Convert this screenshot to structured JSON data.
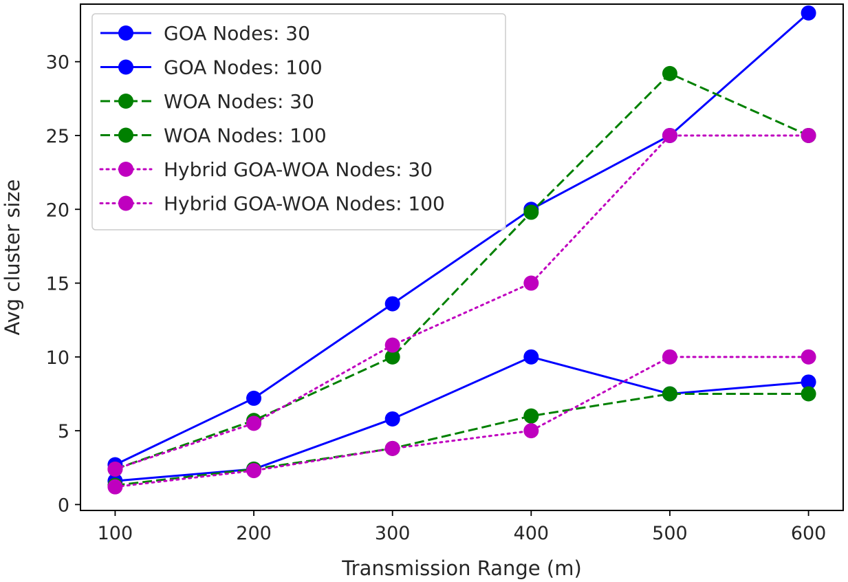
{
  "chart_data": {
    "type": "line",
    "title": "",
    "xlabel": "Transmission Range (m)",
    "ylabel": "Avg cluster size",
    "x": [
      100,
      200,
      300,
      400,
      500,
      600
    ],
    "xlim": [
      75,
      625
    ],
    "ylim": [
      -0.4,
      33.9
    ],
    "xticks": [
      "100",
      "200",
      "300",
      "400",
      "500",
      "600"
    ],
    "yticks": [
      "0",
      "5",
      "10",
      "15",
      "20",
      "25",
      "30"
    ],
    "grid": false,
    "legend_position": "top-left",
    "series": [
      {
        "name": "GOA Nodes: 30",
        "values": [
          1.6,
          2.4,
          5.8,
          10.0,
          7.5,
          8.3
        ],
        "color": "#0000ff",
        "linestyle": "solid"
      },
      {
        "name": "GOA Nodes: 100",
        "values": [
          2.7,
          7.2,
          13.6,
          20.0,
          25.0,
          33.3
        ],
        "color": "#0000ff",
        "linestyle": "solid"
      },
      {
        "name": "WOA Nodes: 30",
        "values": [
          1.3,
          2.4,
          3.8,
          6.0,
          7.5,
          7.5
        ],
        "color": "#008000",
        "linestyle": "dashed"
      },
      {
        "name": "WOA Nodes: 100",
        "values": [
          2.4,
          5.7,
          10.0,
          19.8,
          29.2,
          25.0
        ],
        "color": "#008000",
        "linestyle": "dashed"
      },
      {
        "name": "Hybrid GOA-WOA Nodes: 30",
        "values": [
          1.2,
          2.3,
          3.8,
          5.0,
          10.0,
          10.0
        ],
        "color": "#bf00bf",
        "linestyle": "dotted"
      },
      {
        "name": "Hybrid GOA-WOA Nodes: 100",
        "values": [
          2.4,
          5.5,
          10.8,
          15.0,
          25.0,
          25.0
        ],
        "color": "#bf00bf",
        "linestyle": "dotted"
      }
    ]
  }
}
